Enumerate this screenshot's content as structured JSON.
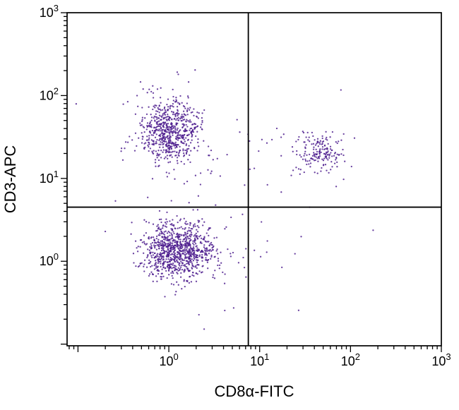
{
  "figure": {
    "kind": "flow-cytometry-dot-plot"
  },
  "chart_data": {
    "type": "scatter",
    "title": "",
    "xlabel": "CD8α-FITC",
    "ylabel": "CD3-APC",
    "xscale": "log",
    "yscale": "log",
    "xlim_log": [
      -1.12,
      3
    ],
    "ylim_log": [
      -1.02,
      3
    ],
    "x_tick_exponents": [
      0,
      1,
      2,
      3
    ],
    "y_tick_exponents": [
      0,
      1,
      2,
      3
    ],
    "tick_base": "10",
    "grid": false,
    "legend": false,
    "point_color": "#4a1a8c",
    "point_radius": 1.15,
    "quadrant_gates": {
      "x": 7.5,
      "y": 4.5
    },
    "populations": [
      {
        "name": "CD3- CD8- cells (lower-left, dense)",
        "center": [
          1.23,
          1.35
        ],
        "sigma_log": [
          0.2,
          0.17
        ],
        "n": 900
      },
      {
        "name": "CD3+ CD8- T cells (upper-left)",
        "center": [
          1.0,
          36
        ],
        "sigma_log": [
          0.17,
          0.2
        ],
        "n": 650
      },
      {
        "name": "CD3+ CD8+ T cells (upper-right)",
        "center": [
          46,
          20
        ],
        "sigma_log": [
          0.13,
          0.12
        ],
        "n": 170
      },
      {
        "name": "background-upper-left",
        "center": [
          1.1,
          32
        ],
        "sigma_log": [
          0.45,
          0.5
        ],
        "n": 40
      },
      {
        "name": "background-lower-left",
        "center": [
          1.26,
          1.26
        ],
        "sigma_log": [
          0.45,
          0.45
        ],
        "n": 40
      },
      {
        "name": "background-upper-right",
        "center": [
          32,
          20
        ],
        "sigma_log": [
          0.45,
          0.35
        ],
        "n": 25
      },
      {
        "name": "sparse-lower-right",
        "center": [
          32,
          1.0
        ],
        "sigma_log": [
          0.4,
          0.25
        ],
        "n": 8
      },
      {
        "name": "sparse-mid-bottom",
        "center": [
          7,
          1.1
        ],
        "sigma_log": [
          0.25,
          0.3
        ],
        "n": 12
      }
    ],
    "seed": 42,
    "axis_color": "#000000"
  }
}
